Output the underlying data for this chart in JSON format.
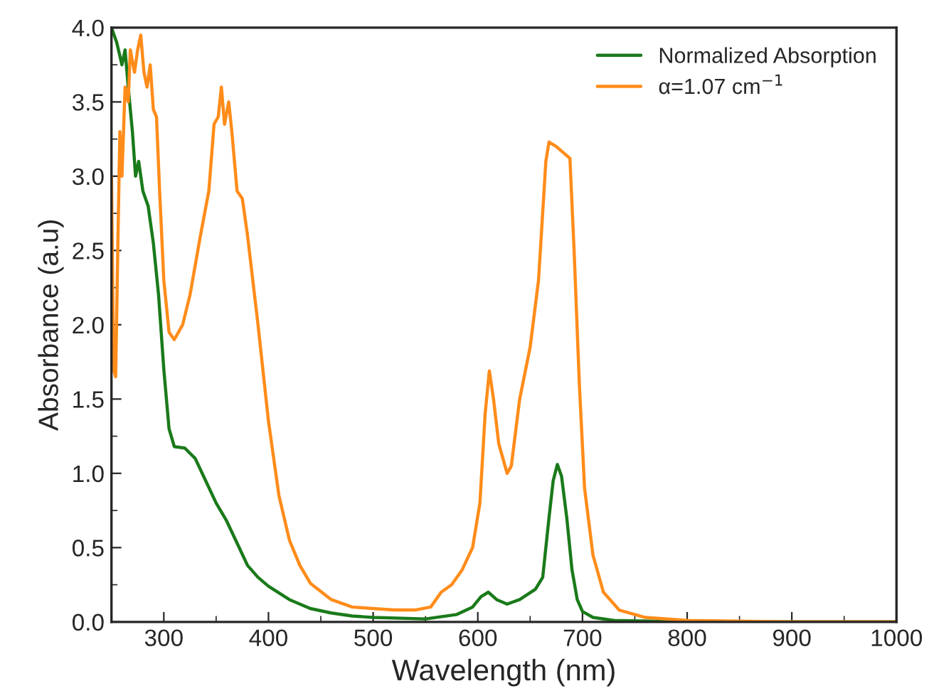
{
  "chart_data": {
    "type": "line",
    "xlabel": "Wavelength (nm)",
    "ylabel": "Absorbance (a.u)",
    "xlim": [
      250,
      1000
    ],
    "ylim": [
      0,
      4.0
    ],
    "xticks": [
      300,
      400,
      500,
      600,
      700,
      800,
      900,
      1000
    ],
    "yticks": [
      {
        "value": 0,
        "label": "0.0"
      },
      {
        "value": 0.5,
        "label": "0.5"
      },
      {
        "value": 1,
        "label": "1.0"
      },
      {
        "value": 1.5,
        "label": "1.5"
      },
      {
        "value": 2,
        "label": "2.0"
      },
      {
        "value": 2.5,
        "label": "2.5"
      },
      {
        "value": 3,
        "label": "3.0"
      },
      {
        "value": 3.5,
        "label": "3.5"
      },
      {
        "value": 4,
        "label": "4.0"
      }
    ],
    "legend": "top right",
    "grid": false,
    "marker": "none",
    "line_style": "solid",
    "series": [
      {
        "name": "Normalized Absorption",
        "color": "#1a7a1a",
        "x": [
          250,
          255,
          260,
          263,
          266,
          270,
          273,
          276,
          280,
          285,
          290,
          295,
          300,
          305,
          310,
          320,
          330,
          340,
          350,
          360,
          370,
          380,
          390,
          400,
          420,
          440,
          460,
          480,
          500,
          550,
          580,
          595,
          603,
          610,
          618,
          628,
          640,
          655,
          662,
          668,
          672,
          676,
          680,
          685,
          690,
          695,
          700,
          710,
          730,
          800,
          1000
        ],
        "values": [
          4.0,
          3.9,
          3.75,
          3.85,
          3.6,
          3.3,
          3.0,
          3.1,
          2.9,
          2.8,
          2.55,
          2.2,
          1.7,
          1.3,
          1.18,
          1.17,
          1.1,
          0.95,
          0.8,
          0.68,
          0.53,
          0.38,
          0.3,
          0.24,
          0.15,
          0.09,
          0.06,
          0.04,
          0.03,
          0.02,
          0.05,
          0.1,
          0.17,
          0.2,
          0.15,
          0.12,
          0.15,
          0.22,
          0.3,
          0.7,
          0.95,
          1.06,
          0.98,
          0.7,
          0.35,
          0.15,
          0.07,
          0.03,
          0.01,
          0.0,
          0.0
        ]
      },
      {
        "name": "α=1.07 cm$^{−1}$",
        "color": "#ff8c1a",
        "x": [
          250,
          252,
          254,
          256,
          258,
          260,
          263,
          266,
          268,
          272,
          275,
          278,
          281,
          284,
          287,
          290,
          293,
          296,
          300,
          305,
          310,
          318,
          325,
          335,
          343,
          348,
          352,
          355,
          358,
          362,
          365,
          370,
          375,
          380,
          390,
          400,
          410,
          420,
          430,
          440,
          460,
          480,
          500,
          520,
          540,
          555,
          565,
          575,
          585,
          595,
          602,
          607,
          611,
          615,
          620,
          628,
          632,
          640,
          650,
          658,
          665,
          668,
          675,
          688,
          692,
          697,
          702,
          710,
          720,
          735,
          760,
          800,
          900,
          1000
        ],
        "values": [
          3.0,
          1.7,
          1.65,
          2.5,
          3.3,
          3.0,
          3.6,
          3.5,
          3.85,
          3.7,
          3.85,
          3.95,
          3.7,
          3.6,
          3.75,
          3.45,
          3.4,
          2.9,
          2.3,
          1.95,
          1.9,
          2.0,
          2.2,
          2.6,
          2.9,
          3.35,
          3.4,
          3.6,
          3.35,
          3.5,
          3.3,
          2.9,
          2.85,
          2.6,
          2.0,
          1.35,
          0.85,
          0.55,
          0.38,
          0.26,
          0.15,
          0.1,
          0.09,
          0.08,
          0.08,
          0.1,
          0.2,
          0.25,
          0.35,
          0.5,
          0.8,
          1.4,
          1.69,
          1.5,
          1.2,
          1.0,
          1.05,
          1.5,
          1.85,
          2.3,
          3.1,
          3.23,
          3.2,
          3.12,
          2.5,
          1.6,
          0.9,
          0.45,
          0.2,
          0.08,
          0.03,
          0.01,
          0.0,
          0.0
        ]
      }
    ]
  }
}
